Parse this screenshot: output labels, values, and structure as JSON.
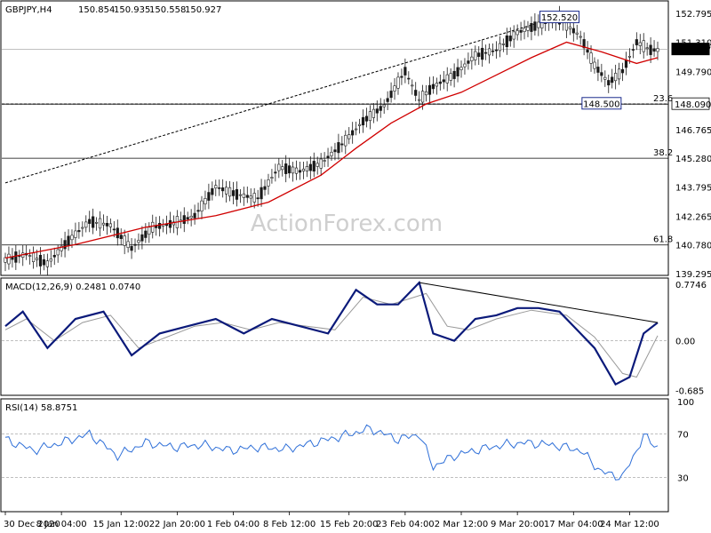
{
  "chart_data": {
    "type": "candlestick",
    "panels": {
      "price": {
        "header": {
          "symbol_tf": "GBPJPY,H4",
          "open": "150.854",
          "high": "150.935",
          "low": "150.558",
          "close": "150.927"
        },
        "ylim": [
          139.2,
          153.4
        ],
        "y_ticks": [
          "152.795",
          "151.310",
          "149.790",
          "148.090",
          "146.765",
          "145.280",
          "143.795",
          "142.265",
          "140.780",
          "139.295"
        ],
        "last_price": "150.927",
        "level_box": "148.090",
        "callouts": [
          {
            "label": "152.520",
            "value": 152.52,
            "x_index": 158
          },
          {
            "label": "148.500",
            "value": 148.5,
            "x_index": 170
          }
        ],
        "fib_levels": [
          {
            "label": "23.6",
            "value": 148.09
          },
          {
            "label": "38.2",
            "value": 145.28
          },
          {
            "label": "61.8",
            "value": 140.78
          }
        ],
        "trendline": {
          "x0": 0,
          "y0": 144.0,
          "x1": 152,
          "y1": 152.3
        },
        "candles": [
          {
            "i": 0,
            "c": 140.0
          },
          {
            "i": 6,
            "c": 140.3
          },
          {
            "i": 12,
            "c": 139.8
          },
          {
            "i": 18,
            "c": 141.0
          },
          {
            "i": 24,
            "c": 142.0
          },
          {
            "i": 30,
            "c": 141.8
          },
          {
            "i": 36,
            "c": 140.6
          },
          {
            "i": 42,
            "c": 141.7
          },
          {
            "i": 48,
            "c": 141.9
          },
          {
            "i": 54,
            "c": 142.3
          },
          {
            "i": 60,
            "c": 143.8
          },
          {
            "i": 66,
            "c": 143.4
          },
          {
            "i": 72,
            "c": 143.2
          },
          {
            "i": 78,
            "c": 144.8
          },
          {
            "i": 84,
            "c": 144.6
          },
          {
            "i": 90,
            "c": 145.0
          },
          {
            "i": 96,
            "c": 146.0
          },
          {
            "i": 102,
            "c": 147.2
          },
          {
            "i": 108,
            "c": 148.0
          },
          {
            "i": 114,
            "c": 149.8
          },
          {
            "i": 118,
            "c": 148.3
          },
          {
            "i": 122,
            "c": 149.0
          },
          {
            "i": 128,
            "c": 149.6
          },
          {
            "i": 134,
            "c": 150.6
          },
          {
            "i": 140,
            "c": 150.9
          },
          {
            "i": 146,
            "c": 151.8
          },
          {
            "i": 152,
            "c": 152.2
          },
          {
            "i": 158,
            "c": 152.5
          },
          {
            "i": 164,
            "c": 151.6
          },
          {
            "i": 168,
            "c": 150.1
          },
          {
            "i": 172,
            "c": 149.2
          },
          {
            "i": 176,
            "c": 149.8
          },
          {
            "i": 180,
            "c": 151.3
          },
          {
            "i": 184,
            "c": 150.9
          }
        ],
        "ma": [
          {
            "i": 0,
            "v": 140.1
          },
          {
            "i": 20,
            "v": 140.8
          },
          {
            "i": 40,
            "v": 141.7
          },
          {
            "i": 60,
            "v": 142.3
          },
          {
            "i": 75,
            "v": 143.0
          },
          {
            "i": 90,
            "v": 144.4
          },
          {
            "i": 100,
            "v": 145.8
          },
          {
            "i": 110,
            "v": 147.1
          },
          {
            "i": 120,
            "v": 148.1
          },
          {
            "i": 130,
            "v": 148.7
          },
          {
            "i": 140,
            "v": 149.6
          },
          {
            "i": 150,
            "v": 150.5
          },
          {
            "i": 160,
            "v": 151.3
          },
          {
            "i": 170,
            "v": 150.8
          },
          {
            "i": 180,
            "v": 150.2
          },
          {
            "i": 186,
            "v": 150.5
          }
        ]
      },
      "macd": {
        "label": "MACD(12,26,9) 0.2481 0.0740",
        "ylim": [
          -0.75,
          0.85
        ],
        "y_ticks": [
          "0.7746",
          "0.00",
          "-0.685"
        ],
        "main": [
          {
            "i": 0,
            "v": 0.2
          },
          {
            "i": 5,
            "v": 0.4
          },
          {
            "i": 12,
            "v": -0.1
          },
          {
            "i": 20,
            "v": 0.3
          },
          {
            "i": 28,
            "v": 0.4
          },
          {
            "i": 36,
            "v": -0.2
          },
          {
            "i": 44,
            "v": 0.1
          },
          {
            "i": 52,
            "v": 0.2
          },
          {
            "i": 60,
            "v": 0.3
          },
          {
            "i": 68,
            "v": 0.1
          },
          {
            "i": 76,
            "v": 0.3
          },
          {
            "i": 84,
            "v": 0.2
          },
          {
            "i": 92,
            "v": 0.1
          },
          {
            "i": 100,
            "v": 0.7
          },
          {
            "i": 106,
            "v": 0.5
          },
          {
            "i": 112,
            "v": 0.5
          },
          {
            "i": 118,
            "v": 0.8
          },
          {
            "i": 122,
            "v": 0.1
          },
          {
            "i": 128,
            "v": 0.0
          },
          {
            "i": 134,
            "v": 0.3
          },
          {
            "i": 140,
            "v": 0.35
          },
          {
            "i": 146,
            "v": 0.45
          },
          {
            "i": 152,
            "v": 0.45
          },
          {
            "i": 158,
            "v": 0.4
          },
          {
            "i": 164,
            "v": 0.1
          },
          {
            "i": 168,
            "v": -0.1
          },
          {
            "i": 174,
            "v": -0.6
          },
          {
            "i": 178,
            "v": -0.5
          },
          {
            "i": 182,
            "v": 0.1
          },
          {
            "i": 186,
            "v": 0.25
          }
        ],
        "signal": [
          {
            "i": 0,
            "v": 0.15
          },
          {
            "i": 6,
            "v": 0.3
          },
          {
            "i": 14,
            "v": 0.0
          },
          {
            "i": 22,
            "v": 0.25
          },
          {
            "i": 30,
            "v": 0.35
          },
          {
            "i": 38,
            "v": -0.1
          },
          {
            "i": 46,
            "v": 0.05
          },
          {
            "i": 54,
            "v": 0.2
          },
          {
            "i": 62,
            "v": 0.25
          },
          {
            "i": 70,
            "v": 0.15
          },
          {
            "i": 78,
            "v": 0.25
          },
          {
            "i": 86,
            "v": 0.2
          },
          {
            "i": 94,
            "v": 0.15
          },
          {
            "i": 102,
            "v": 0.6
          },
          {
            "i": 110,
            "v": 0.5
          },
          {
            "i": 120,
            "v": 0.65
          },
          {
            "i": 126,
            "v": 0.2
          },
          {
            "i": 132,
            "v": 0.15
          },
          {
            "i": 140,
            "v": 0.3
          },
          {
            "i": 150,
            "v": 0.42
          },
          {
            "i": 160,
            "v": 0.35
          },
          {
            "i": 168,
            "v": 0.05
          },
          {
            "i": 176,
            "v": -0.45
          },
          {
            "i": 180,
            "v": -0.5
          },
          {
            "i": 186,
            "v": 0.07
          }
        ],
        "trendline": {
          "x0": 118,
          "y0": 0.8,
          "x1": 186,
          "y1": 0.25
        }
      },
      "rsi": {
        "label": "RSI(14) 58.8751",
        "ylim": [
          0,
          100
        ],
        "y_ticks": [
          "100",
          "70",
          "30"
        ],
        "levels": [
          70,
          30
        ],
        "values": [
          {
            "i": 0,
            "v": 65
          },
          {
            "i": 8,
            "v": 55
          },
          {
            "i": 16,
            "v": 62
          },
          {
            "i": 24,
            "v": 70
          },
          {
            "i": 32,
            "v": 50
          },
          {
            "i": 40,
            "v": 62
          },
          {
            "i": 48,
            "v": 58
          },
          {
            "i": 56,
            "v": 60
          },
          {
            "i": 64,
            "v": 55
          },
          {
            "i": 72,
            "v": 58
          },
          {
            "i": 80,
            "v": 56
          },
          {
            "i": 88,
            "v": 62
          },
          {
            "i": 96,
            "v": 68
          },
          {
            "i": 104,
            "v": 75
          },
          {
            "i": 112,
            "v": 65
          },
          {
            "i": 118,
            "v": 70
          },
          {
            "i": 122,
            "v": 40
          },
          {
            "i": 128,
            "v": 50
          },
          {
            "i": 134,
            "v": 55
          },
          {
            "i": 142,
            "v": 60
          },
          {
            "i": 148,
            "v": 62
          },
          {
            "i": 156,
            "v": 60
          },
          {
            "i": 164,
            "v": 55
          },
          {
            "i": 170,
            "v": 35
          },
          {
            "i": 176,
            "v": 30
          },
          {
            "i": 182,
            "v": 68
          },
          {
            "i": 186,
            "v": 58
          }
        ]
      }
    },
    "x_ticks": [
      {
        "label": "30 Dec 2020",
        "i": 0
      },
      {
        "label": "8 Jan 04:00",
        "i": 16
      },
      {
        "label": "15 Jan 12:00",
        "i": 33
      },
      {
        "label": "22 Jan 20:00",
        "i": 49
      },
      {
        "label": "1 Feb 04:00",
        "i": 65
      },
      {
        "label": "8 Feb 12:00",
        "i": 81
      },
      {
        "label": "15 Feb 20:00",
        "i": 98
      },
      {
        "label": "23 Feb 04:00",
        "i": 114
      },
      {
        "label": "2 Mar 12:00",
        "i": 130
      },
      {
        "label": "9 Mar 20:00",
        "i": 146
      },
      {
        "label": "17 Mar 04:00",
        "i": 162
      },
      {
        "label": "24 Mar 12:00",
        "i": 178
      }
    ],
    "watermark": "ActionForex.com",
    "colors": {
      "candle": "#1a1a1a",
      "ma": "#d00000",
      "macd_main": "#0b1a7a",
      "macd_signal": "#999999",
      "rsi": "#2e6fd8",
      "fib": "#000000",
      "box_border": "#1a2a8c"
    }
  }
}
